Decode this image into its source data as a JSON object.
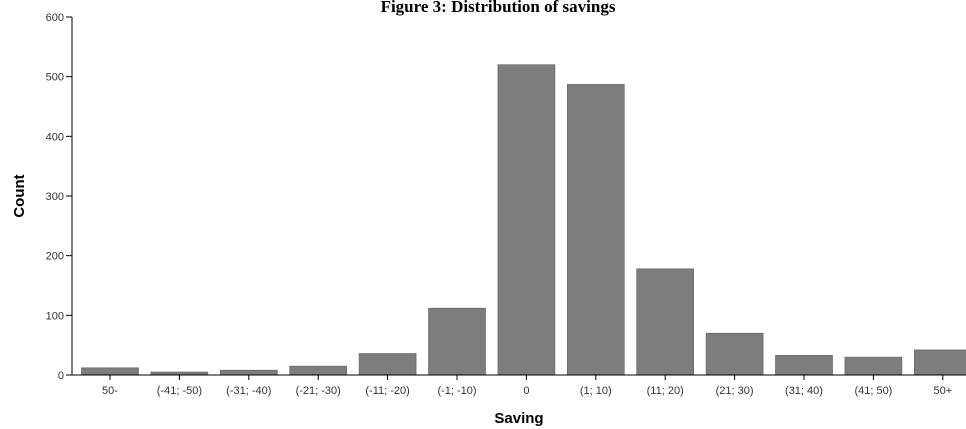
{
  "chart_data": {
    "type": "bar",
    "title": "Figure 3: Distribution of savings",
    "xlabel": "Saving",
    "ylabel": "Count",
    "categories": [
      "50-",
      "(-41; -50)",
      "(-31; -40)",
      "(-21; -30)",
      "(-11; -20)",
      "(-1; -10)",
      "0",
      "(1; 10)",
      "(11; 20)",
      "(21; 30)",
      "(31; 40)",
      "(41; 50)",
      "50+"
    ],
    "values": [
      12,
      5,
      8,
      15,
      36,
      112,
      520,
      487,
      178,
      70,
      33,
      30,
      42
    ],
    "ylim": [
      0,
      600
    ],
    "yticks": [
      0,
      100,
      200,
      300,
      400,
      500,
      600
    ],
    "grid": false,
    "legend": "none",
    "bar_color": "#7d7d7d",
    "axis_color": "#000000"
  }
}
